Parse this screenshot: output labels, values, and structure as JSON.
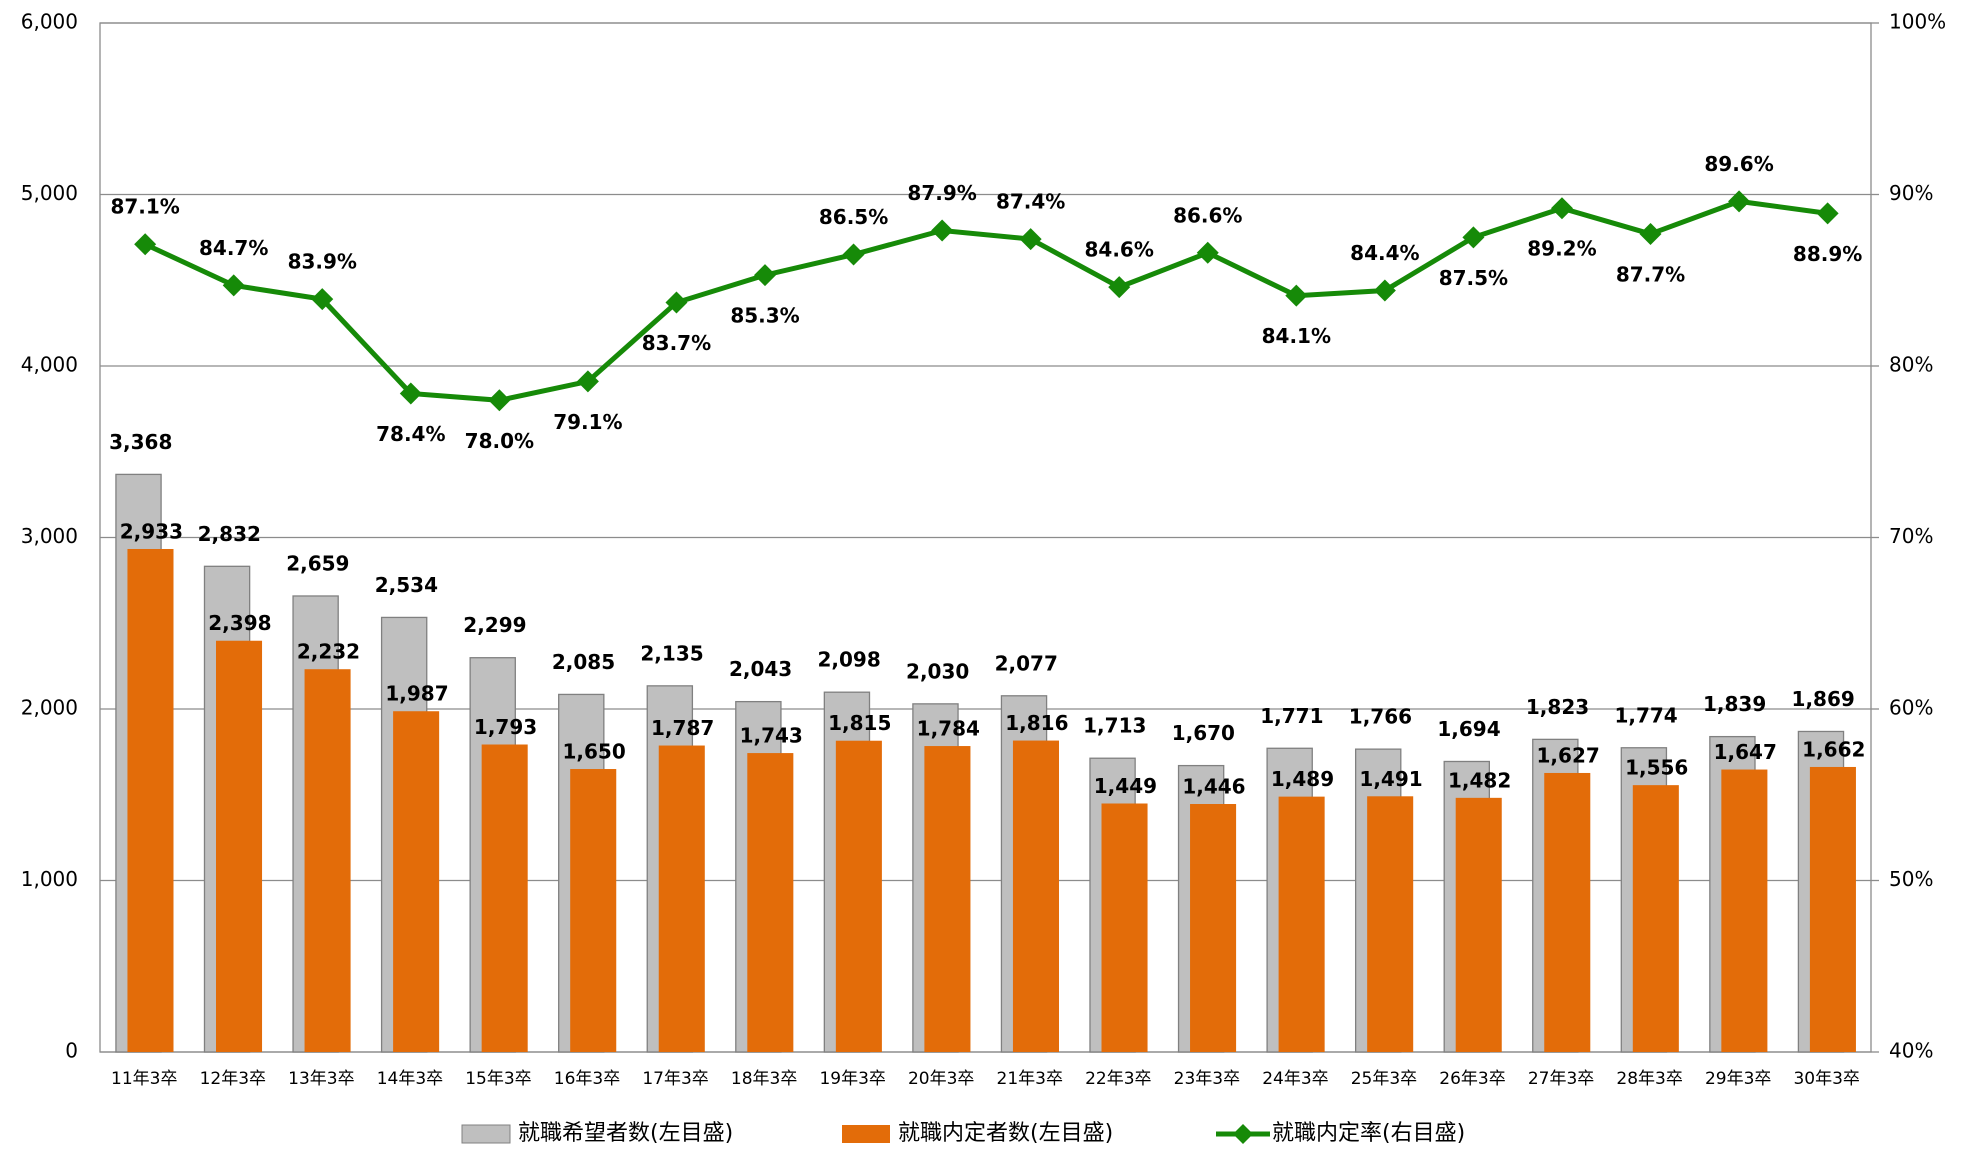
{
  "chart_data": {
    "type": "bar",
    "categories": [
      "11年3卒",
      "12年3卒",
      "13年3卒",
      "14年3卒",
      "15年3卒",
      "16年3卒",
      "17年3卒",
      "18年3卒",
      "19年3卒",
      "20年3卒",
      "21年3卒",
      "22年3卒",
      "23年3卒",
      "24年3卒",
      "25年3卒",
      "26年3卒",
      "27年3卒",
      "28年3卒",
      "29年3卒",
      "30年3卒"
    ],
    "series": [
      {
        "name": "就職希望者数(左目盛)",
        "type": "bar",
        "color": "#bfbfbf",
        "values": [
          3368,
          2832,
          2659,
          2534,
          2299,
          2085,
          2135,
          2043,
          2098,
          2030,
          2077,
          1713,
          1670,
          1771,
          1766,
          1694,
          1823,
          1774,
          1839,
          1869
        ],
        "value_labels": [
          "3,368",
          "2,832",
          "2,659",
          "2,534",
          "2,299",
          "2,085",
          "2,135",
          "2,043",
          "2,098",
          "2,030",
          "2,077",
          "1,713",
          "1,670",
          "1,771",
          "1,766",
          "1,694",
          "1,823",
          "1,774",
          "1,839",
          "1,869"
        ]
      },
      {
        "name": "就職内定者数(左目盛)",
        "type": "bar",
        "color": "#e36c09",
        "values": [
          2933,
          2398,
          2232,
          1987,
          1793,
          1650,
          1787,
          1743,
          1815,
          1784,
          1816,
          1449,
          1446,
          1489,
          1491,
          1482,
          1627,
          1556,
          1647,
          1662
        ],
        "value_labels": [
          "2,933",
          "2,398",
          "2,232",
          "1,987",
          "1,793",
          "1,650",
          "1,787",
          "1,743",
          "1,815",
          "1,784",
          "1,816",
          "1,449",
          "1,446",
          "1,489",
          "1,491",
          "1,482",
          "1,627",
          "1,556",
          "1,647",
          "1,662"
        ]
      },
      {
        "name": "就職内定率(右目盛)",
        "type": "line",
        "axis": "y2",
        "color": "#168a08",
        "values": [
          87.1,
          84.7,
          83.9,
          78.4,
          78.0,
          79.1,
          83.7,
          85.3,
          86.5,
          87.9,
          87.4,
          84.6,
          86.6,
          84.1,
          84.4,
          87.5,
          89.2,
          87.7,
          89.6,
          88.9
        ],
        "value_labels": [
          "87.1%",
          "84.7%",
          "83.9%",
          "78.4%",
          "78.0%",
          "79.1%",
          "83.7%",
          "85.3%",
          "86.5%",
          "87.9%",
          "87.4%",
          "84.6%",
          "86.6%",
          "84.1%",
          "84.4%",
          "87.5%",
          "89.2%",
          "87.7%",
          "89.6%",
          "88.9%"
        ]
      }
    ],
    "ylim": [
      0,
      6000
    ],
    "yticks": [
      0,
      {
        "value": 1000,
        "label": "1,000"
      },
      {
        "value": 2000,
        "label": "2,000"
      },
      {
        "value": 3000,
        "label": "3,000"
      },
      {
        "value": 4000,
        "label": "4,000"
      },
      {
        "value": 5000,
        "label": "5,000"
      },
      {
        "value": 6000,
        "label": "6,000"
      }
    ],
    "y2lim": [
      40,
      100
    ],
    "y2ticks": [
      {
        "value": 40,
        "label": "40%"
      },
      {
        "value": 50,
        "label": "50%"
      },
      {
        "value": 60,
        "label": "60%"
      },
      {
        "value": 70,
        "label": "70%"
      },
      {
        "value": 80,
        "label": "80%"
      },
      {
        "value": 90,
        "label": "90%"
      },
      {
        "value": 100,
        "label": "100%"
      }
    ],
    "grid": true,
    "legend": "bottom"
  }
}
